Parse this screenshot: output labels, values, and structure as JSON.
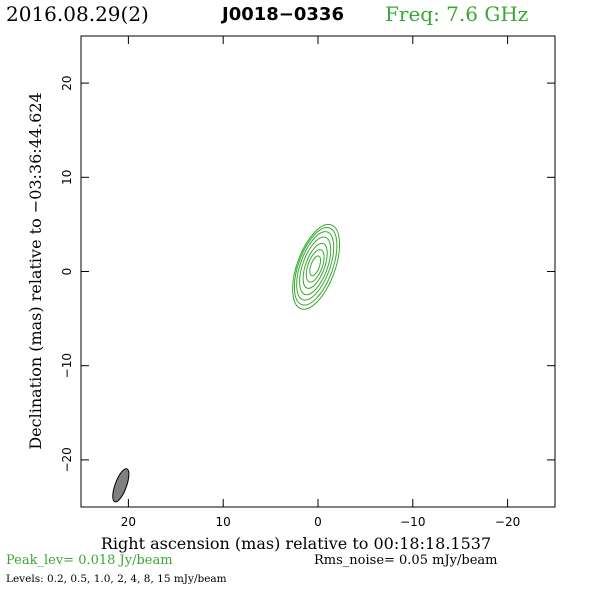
{
  "header": {
    "date": "2016.08.29(2)",
    "source": "J0018−0336",
    "freq": "Freq: 7.6 GHz"
  },
  "footer": {
    "peak": "Peak_lev=  0.018 Jy/beam",
    "rms": "Rms_noise= 0.05 mJy/beam",
    "levels": "Levels: 0.2,  0.5,  1.0,    2,    4,    8,   15  mJy/beam"
  },
  "colors": {
    "contour": "#39a832",
    "beam": "#808080",
    "text": "#000000"
  },
  "chart_data": {
    "type": "contour",
    "title": "",
    "xlabel": "Right ascension (mas) relative to 00:18:18.1537",
    "ylabel": "Declination (mas) relative to −03:36:44.624",
    "xlim": [
      25,
      -25
    ],
    "ylim": [
      -25,
      25
    ],
    "x_ticks": [
      20,
      10,
      0,
      -10,
      -20
    ],
    "x_tick_labels": [
      "20",
      "10",
      "0",
      "−10",
      "−20"
    ],
    "y_ticks": [
      20,
      10,
      0,
      -10,
      -20
    ],
    "y_tick_labels": [
      "20",
      "10",
      "0",
      "−10",
      "−20"
    ],
    "contour_levels_mJy": [
      0.2,
      0.5,
      1.0,
      2,
      4,
      8,
      15
    ],
    "contours": [
      {
        "cx": 0.2,
        "cy": 0.5,
        "a": 2.0,
        "b": 4.7,
        "pa": 20
      },
      {
        "cx": 0.25,
        "cy": 0.55,
        "a": 1.8,
        "b": 4.3,
        "pa": 20
      },
      {
        "cx": 0.3,
        "cy": 0.6,
        "a": 1.55,
        "b": 3.8,
        "pa": 20
      },
      {
        "cx": 0.3,
        "cy": 0.6,
        "a": 1.3,
        "b": 3.2,
        "pa": 20
      },
      {
        "cx": 0.3,
        "cy": 0.6,
        "a": 1.0,
        "b": 2.5,
        "pa": 20
      },
      {
        "cx": 0.3,
        "cy": 0.6,
        "a": 0.75,
        "b": 1.8,
        "pa": 20
      },
      {
        "cx": 0.3,
        "cy": 0.6,
        "a": 0.45,
        "b": 1.1,
        "pa": 20
      }
    ],
    "beam": {
      "cx": 20.8,
      "cy": -22.7,
      "a": 0.6,
      "b": 1.85,
      "pa": 20
    },
    "grid": false
  }
}
